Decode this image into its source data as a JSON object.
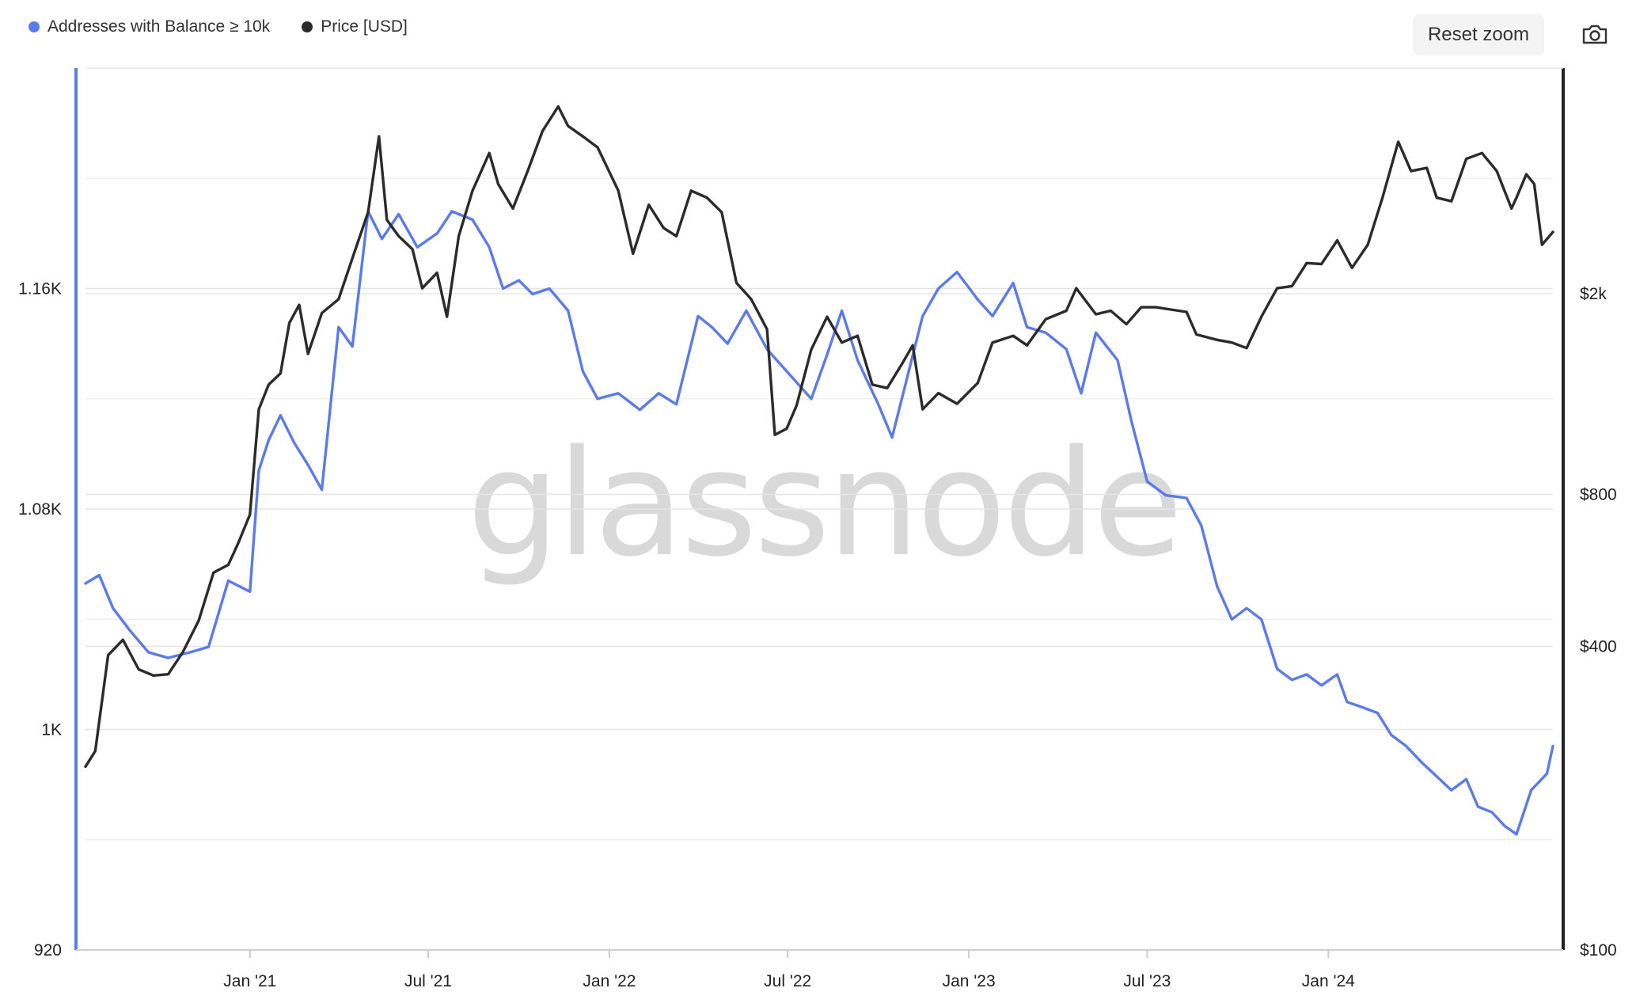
{
  "legend": {
    "addresses_label": "Addresses with Balance ≥ 10k",
    "price_label": "Price [USD]"
  },
  "toolbar": {
    "reset_zoom_label": "Reset zoom",
    "camera_icon": "camera-icon"
  },
  "watermark": "glassnode",
  "colors": {
    "addresses": "#5b7be8",
    "price": "#2b2b2b",
    "grid": "#e6e6e6",
    "left_axis": "#5b7be8",
    "right_axis": "#222222"
  },
  "chart_data": {
    "type": "line",
    "x_ticks": [
      "Jan '21",
      "Jul '21",
      "Jan '22",
      "Jul '22",
      "Jan '23",
      "Jul '23",
      "Jan '24"
    ],
    "x_tick_dates": [
      "2021-01-01",
      "2021-07-01",
      "2022-01-01",
      "2022-07-01",
      "2023-01-01",
      "2023-07-01",
      "2024-01-01"
    ],
    "x_range": [
      "2020-07-18",
      "2024-08-16"
    ],
    "y_left": {
      "ticks": [
        920,
        1000,
        1080,
        1160
      ],
      "tick_labels": [
        "920",
        "1K",
        "1.08K",
        "1.16K"
      ],
      "range": [
        920,
        1240
      ]
    },
    "y_right": {
      "scale": "log",
      "ticks": [
        100,
        400,
        800,
        2000
      ],
      "tick_labels": [
        "$100",
        "$400",
        "$800",
        "$2k"
      ],
      "range": [
        100,
        5600
      ]
    },
    "series": [
      {
        "name": "Addresses with Balance ≥ 10k",
        "axis": "left",
        "points": [
          [
            "2020-07-18",
            1053
          ],
          [
            "2020-08-01",
            1056
          ],
          [
            "2020-08-15",
            1044
          ],
          [
            "2020-09-01",
            1036
          ],
          [
            "2020-09-20",
            1028
          ],
          [
            "2020-10-10",
            1026
          ],
          [
            "2020-11-01",
            1028
          ],
          [
            "2020-11-20",
            1030
          ],
          [
            "2020-12-10",
            1054
          ],
          [
            "2021-01-01",
            1050
          ],
          [
            "2021-01-10",
            1094
          ],
          [
            "2021-01-20",
            1105
          ],
          [
            "2021-02-01",
            1114
          ],
          [
            "2021-02-15",
            1104
          ],
          [
            "2021-03-01",
            1096
          ],
          [
            "2021-03-15",
            1087
          ],
          [
            "2021-04-01",
            1146
          ],
          [
            "2021-04-15",
            1139
          ],
          [
            "2021-05-01",
            1188
          ],
          [
            "2021-05-15",
            1178
          ],
          [
            "2021-06-01",
            1187
          ],
          [
            "2021-06-20",
            1175
          ],
          [
            "2021-07-10",
            1180
          ],
          [
            "2021-07-25",
            1188
          ],
          [
            "2021-08-15",
            1185
          ],
          [
            "2021-09-01",
            1175
          ],
          [
            "2021-09-15",
            1160
          ],
          [
            "2021-10-01",
            1163
          ],
          [
            "2021-10-15",
            1158
          ],
          [
            "2021-11-01",
            1160
          ],
          [
            "2021-11-20",
            1152
          ],
          [
            "2021-12-05",
            1130
          ],
          [
            "2021-12-20",
            1120
          ],
          [
            "2022-01-10",
            1122
          ],
          [
            "2022-02-01",
            1116
          ],
          [
            "2022-02-20",
            1122
          ],
          [
            "2022-03-10",
            1118
          ],
          [
            "2022-04-01",
            1150
          ],
          [
            "2022-04-15",
            1146
          ],
          [
            "2022-05-01",
            1140
          ],
          [
            "2022-05-20",
            1152
          ],
          [
            "2022-06-10",
            1138
          ],
          [
            "2022-06-25",
            1132
          ],
          [
            "2022-07-10",
            1126
          ],
          [
            "2022-07-25",
            1120
          ],
          [
            "2022-08-10",
            1136
          ],
          [
            "2022-08-25",
            1152
          ],
          [
            "2022-09-10",
            1134
          ],
          [
            "2022-10-01",
            1118
          ],
          [
            "2022-10-15",
            1106
          ],
          [
            "2022-11-01",
            1130
          ],
          [
            "2022-11-15",
            1150
          ],
          [
            "2022-12-01",
            1160
          ],
          [
            "2022-12-20",
            1166
          ],
          [
            "2023-01-10",
            1156
          ],
          [
            "2023-01-25",
            1150
          ],
          [
            "2023-02-15",
            1162
          ],
          [
            "2023-03-01",
            1146
          ],
          [
            "2023-03-20",
            1144
          ],
          [
            "2023-04-10",
            1138
          ],
          [
            "2023-04-25",
            1122
          ],
          [
            "2023-05-10",
            1144
          ],
          [
            "2023-06-01",
            1134
          ],
          [
            "2023-06-15",
            1112
          ],
          [
            "2023-07-01",
            1090
          ],
          [
            "2023-07-20",
            1085
          ],
          [
            "2023-08-10",
            1084
          ],
          [
            "2023-08-25",
            1074
          ],
          [
            "2023-09-10",
            1052
          ],
          [
            "2023-09-25",
            1040
          ],
          [
            "2023-10-10",
            1044
          ],
          [
            "2023-10-25",
            1040
          ],
          [
            "2023-11-10",
            1022
          ],
          [
            "2023-11-25",
            1018
          ],
          [
            "2023-12-10",
            1020
          ],
          [
            "2023-12-25",
            1016
          ],
          [
            "2024-01-10",
            1020
          ],
          [
            "2024-01-20",
            1010
          ],
          [
            "2024-02-05",
            1008
          ],
          [
            "2024-02-20",
            1006
          ],
          [
            "2024-03-05",
            998
          ],
          [
            "2024-03-20",
            994
          ],
          [
            "2024-04-05",
            988
          ],
          [
            "2024-04-20",
            983
          ],
          [
            "2024-05-05",
            978
          ],
          [
            "2024-05-20",
            982
          ],
          [
            "2024-06-01",
            972
          ],
          [
            "2024-06-15",
            970
          ],
          [
            "2024-06-28",
            965
          ],
          [
            "2024-07-10",
            962
          ],
          [
            "2024-07-25",
            978
          ],
          [
            "2024-08-10",
            984
          ],
          [
            "2024-08-16",
            994
          ]
        ]
      },
      {
        "name": "Price [USD]",
        "axis": "right",
        "points": [
          [
            "2020-07-18",
            231
          ],
          [
            "2020-07-28",
            248
          ],
          [
            "2020-08-10",
            384
          ],
          [
            "2020-08-25",
            412
          ],
          [
            "2020-09-10",
            360
          ],
          [
            "2020-09-25",
            350
          ],
          [
            "2020-10-10",
            352
          ],
          [
            "2020-10-25",
            390
          ],
          [
            "2020-11-10",
            450
          ],
          [
            "2020-11-25",
            560
          ],
          [
            "2020-12-10",
            580
          ],
          [
            "2020-12-20",
            640
          ],
          [
            "2021-01-01",
            730
          ],
          [
            "2021-01-10",
            1180
          ],
          [
            "2021-01-20",
            1320
          ],
          [
            "2021-02-01",
            1390
          ],
          [
            "2021-02-10",
            1750
          ],
          [
            "2021-02-20",
            1900
          ],
          [
            "2021-03-01",
            1520
          ],
          [
            "2021-03-15",
            1830
          ],
          [
            "2021-04-01",
            1950
          ],
          [
            "2021-04-15",
            2350
          ],
          [
            "2021-05-01",
            2900
          ],
          [
            "2021-05-12",
            4100
          ],
          [
            "2021-05-20",
            2800
          ],
          [
            "2021-06-01",
            2600
          ],
          [
            "2021-06-15",
            2450
          ],
          [
            "2021-06-25",
            2050
          ],
          [
            "2021-07-10",
            2200
          ],
          [
            "2021-07-20",
            1800
          ],
          [
            "2021-08-01",
            2600
          ],
          [
            "2021-08-15",
            3200
          ],
          [
            "2021-09-01",
            3800
          ],
          [
            "2021-09-10",
            3300
          ],
          [
            "2021-09-25",
            2950
          ],
          [
            "2021-10-10",
            3500
          ],
          [
            "2021-10-25",
            4200
          ],
          [
            "2021-11-10",
            4700
          ],
          [
            "2021-11-20",
            4300
          ],
          [
            "2021-12-05",
            4100
          ],
          [
            "2021-12-20",
            3900
          ],
          [
            "2022-01-10",
            3200
          ],
          [
            "2022-01-25",
            2400
          ],
          [
            "2022-02-10",
            3000
          ],
          [
            "2022-02-25",
            2700
          ],
          [
            "2022-03-10",
            2600
          ],
          [
            "2022-03-25",
            3200
          ],
          [
            "2022-04-10",
            3100
          ],
          [
            "2022-04-25",
            2900
          ],
          [
            "2022-05-10",
            2100
          ],
          [
            "2022-05-25",
            1950
          ],
          [
            "2022-06-10",
            1700
          ],
          [
            "2022-06-18",
            1050
          ],
          [
            "2022-06-30",
            1080
          ],
          [
            "2022-07-10",
            1200
          ],
          [
            "2022-07-25",
            1550
          ],
          [
            "2022-08-10",
            1800
          ],
          [
            "2022-08-25",
            1600
          ],
          [
            "2022-09-10",
            1650
          ],
          [
            "2022-09-25",
            1320
          ],
          [
            "2022-10-10",
            1300
          ],
          [
            "2022-10-25",
            1450
          ],
          [
            "2022-11-05",
            1580
          ],
          [
            "2022-11-15",
            1180
          ],
          [
            "2022-12-01",
            1270
          ],
          [
            "2022-12-20",
            1210
          ],
          [
            "2023-01-10",
            1330
          ],
          [
            "2023-01-25",
            1600
          ],
          [
            "2023-02-15",
            1650
          ],
          [
            "2023-03-01",
            1580
          ],
          [
            "2023-03-20",
            1780
          ],
          [
            "2023-04-10",
            1850
          ],
          [
            "2023-04-20",
            2050
          ],
          [
            "2023-05-10",
            1820
          ],
          [
            "2023-05-25",
            1850
          ],
          [
            "2023-06-10",
            1740
          ],
          [
            "2023-06-25",
            1880
          ],
          [
            "2023-07-10",
            1880
          ],
          [
            "2023-07-25",
            1860
          ],
          [
            "2023-08-10",
            1840
          ],
          [
            "2023-08-20",
            1660
          ],
          [
            "2023-09-10",
            1620
          ],
          [
            "2023-09-25",
            1600
          ],
          [
            "2023-10-10",
            1560
          ],
          [
            "2023-10-25",
            1800
          ],
          [
            "2023-11-10",
            2050
          ],
          [
            "2023-11-25",
            2070
          ],
          [
            "2023-12-10",
            2300
          ],
          [
            "2023-12-25",
            2290
          ],
          [
            "2024-01-10",
            2550
          ],
          [
            "2024-01-25",
            2250
          ],
          [
            "2024-02-10",
            2500
          ],
          [
            "2024-02-25",
            3100
          ],
          [
            "2024-03-12",
            4000
          ],
          [
            "2024-03-25",
            3500
          ],
          [
            "2024-04-10",
            3550
          ],
          [
            "2024-04-20",
            3100
          ],
          [
            "2024-05-05",
            3050
          ],
          [
            "2024-05-20",
            3700
          ],
          [
            "2024-06-05",
            3800
          ],
          [
            "2024-06-20",
            3500
          ],
          [
            "2024-07-05",
            2950
          ],
          [
            "2024-07-10",
            3100
          ],
          [
            "2024-07-20",
            3450
          ],
          [
            "2024-07-28",
            3300
          ],
          [
            "2024-08-05",
            2500
          ],
          [
            "2024-08-16",
            2650
          ]
        ]
      }
    ],
    "grid": true,
    "legend_position": "top-left"
  }
}
